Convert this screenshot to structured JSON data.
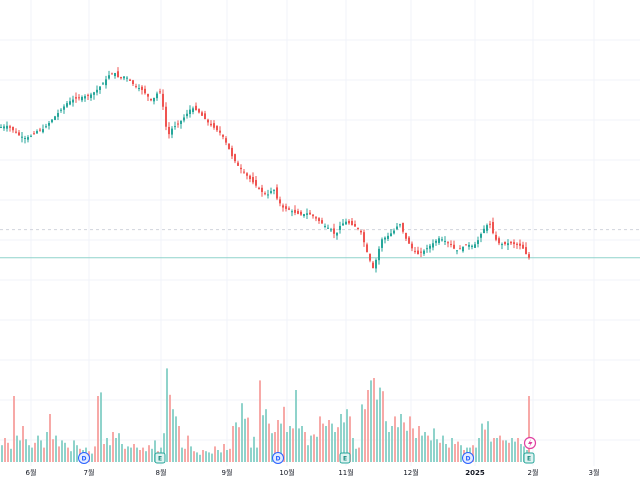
{
  "chart_data": {
    "type": "candlestick",
    "colors": {
      "up": "#26a69a",
      "down": "#ef5350",
      "up_volume": "#8fd3cb",
      "down_volume": "#f7a9a7",
      "grid": "#f0f3fa",
      "price_line": "#8fd3cb",
      "ref_line": "#d1d4dc"
    },
    "xlim": [
      0,
      640
    ],
    "price_range": [
      0,
      100
    ],
    "x_axis_labels": [
      {
        "label": "6월",
        "x": 31,
        "bold": false
      },
      {
        "label": "7월",
        "x": 89,
        "bold": false
      },
      {
        "label": "8월",
        "x": 161,
        "bold": false
      },
      {
        "label": "9월",
        "x": 227,
        "bold": false
      },
      {
        "label": "10월",
        "x": 287,
        "bold": false
      },
      {
        "label": "11월",
        "x": 346,
        "bold": false
      },
      {
        "label": "12월",
        "x": 411,
        "bold": false
      },
      {
        "label": "2025",
        "x": 475,
        "bold": true
      },
      {
        "label": "2월",
        "x": 533,
        "bold": false
      },
      {
        "label": "3월",
        "x": 594,
        "bold": false
      }
    ],
    "event_markers": [
      {
        "label": "D",
        "x": 84,
        "kind": "dividend"
      },
      {
        "label": "E",
        "x": 160,
        "kind": "earnings"
      },
      {
        "label": "D",
        "x": 278,
        "kind": "dividend"
      },
      {
        "label": "E",
        "x": 345,
        "kind": "earnings"
      },
      {
        "label": "D",
        "x": 468,
        "kind": "dividend"
      },
      {
        "label": "E",
        "x": 529,
        "kind": "earnings"
      }
    ],
    "price_path": [
      [
        0,
        70.5
      ],
      [
        8,
        71
      ],
      [
        14,
        69.5
      ],
      [
        20,
        68
      ],
      [
        26,
        67.2
      ],
      [
        32,
        68
      ],
      [
        38,
        69.5
      ],
      [
        44,
        70
      ],
      [
        50,
        72
      ],
      [
        56,
        74
      ],
      [
        62,
        76
      ],
      [
        68,
        78
      ],
      [
        74,
        79
      ],
      [
        80,
        79.5
      ],
      [
        86,
        80
      ],
      [
        92,
        80.5
      ],
      [
        98,
        82
      ],
      [
        104,
        84
      ],
      [
        110,
        86.5
      ],
      [
        116,
        87
      ],
      [
        120,
        85
      ],
      [
        124,
        86
      ],
      [
        128,
        85.5
      ],
      [
        132,
        84
      ],
      [
        136,
        83
      ],
      [
        142,
        82
      ],
      [
        148,
        80
      ],
      [
        152,
        78.5
      ],
      [
        156,
        80
      ],
      [
        160,
        82
      ],
      [
        164,
        76
      ],
      [
        168,
        67.5
      ],
      [
        172,
        70
      ],
      [
        176,
        71
      ],
      [
        180,
        72
      ],
      [
        186,
        74
      ],
      [
        192,
        76.5
      ],
      [
        198,
        75.5
      ],
      [
        204,
        73.5
      ],
      [
        210,
        71.5
      ],
      [
        216,
        70
      ],
      [
        222,
        68.5
      ],
      [
        228,
        65
      ],
      [
        232,
        62
      ],
      [
        238,
        59
      ],
      [
        244,
        57
      ],
      [
        250,
        55
      ],
      [
        256,
        53
      ],
      [
        262,
        51
      ],
      [
        268,
        50
      ],
      [
        274,
        52
      ],
      [
        278,
        48.5
      ],
      [
        284,
        46
      ],
      [
        290,
        45.5
      ],
      [
        296,
        44.5
      ],
      [
        302,
        44
      ],
      [
        308,
        44.5
      ],
      [
        314,
        43.5
      ],
      [
        320,
        42
      ],
      [
        326,
        40.5
      ],
      [
        332,
        39.5
      ],
      [
        336,
        37.5
      ],
      [
        340,
        40.5
      ],
      [
        346,
        42
      ],
      [
        352,
        41
      ],
      [
        358,
        40
      ],
      [
        362,
        38.5
      ],
      [
        366,
        34
      ],
      [
        370,
        30.5
      ],
      [
        374,
        27.5
      ],
      [
        378,
        32
      ],
      [
        382,
        36.5
      ],
      [
        388,
        37.5
      ],
      [
        394,
        39
      ],
      [
        400,
        41.5
      ],
      [
        406,
        37
      ],
      [
        412,
        34
      ],
      [
        418,
        32
      ],
      [
        424,
        33
      ],
      [
        430,
        34.5
      ],
      [
        436,
        36
      ],
      [
        440,
        37
      ],
      [
        446,
        36
      ],
      [
        452,
        35
      ],
      [
        456,
        33
      ],
      [
        462,
        34
      ],
      [
        468,
        35
      ],
      [
        474,
        34.5
      ],
      [
        478,
        36
      ],
      [
        482,
        38.5
      ],
      [
        486,
        40.5
      ],
      [
        490,
        41.5
      ],
      [
        494,
        38
      ],
      [
        498,
        35.5
      ],
      [
        504,
        35
      ],
      [
        510,
        35.5
      ],
      [
        516,
        35
      ],
      [
        522,
        34.5
      ],
      [
        526,
        32.5
      ],
      [
        528,
        31
      ]
    ],
    "current_price": 31,
    "reference_price": 39.5,
    "volume_range": [
      0,
      100
    ],
    "volumes": [
      [
        2,
        14
      ],
      [
        5,
        20
      ],
      [
        8,
        16
      ],
      [
        11,
        11
      ],
      [
        14,
        55
      ],
      [
        17,
        22
      ],
      [
        20,
        18
      ],
      [
        23,
        30
      ],
      [
        26,
        19
      ],
      [
        29,
        14
      ],
      [
        32,
        12
      ],
      [
        35,
        16
      ],
      [
        38,
        22
      ],
      [
        41,
        18
      ],
      [
        44,
        12
      ],
      [
        47,
        25
      ],
      [
        50,
        40
      ],
      [
        53,
        19
      ],
      [
        56,
        22
      ],
      [
        59,
        13
      ],
      [
        62,
        18
      ],
      [
        65,
        16
      ],
      [
        68,
        12
      ],
      [
        71,
        9
      ],
      [
        74,
        18
      ],
      [
        77,
        14
      ],
      [
        80,
        11
      ],
      [
        83,
        10
      ],
      [
        86,
        12
      ],
      [
        89,
        9
      ],
      [
        92,
        7
      ],
      [
        95,
        13
      ],
      [
        98,
        55
      ],
      [
        101,
        58
      ],
      [
        104,
        15
      ],
      [
        107,
        20
      ],
      [
        110,
        14
      ],
      [
        113,
        25
      ],
      [
        116,
        20
      ],
      [
        119,
        24
      ],
      [
        122,
        15
      ],
      [
        125,
        11
      ],
      [
        128,
        13
      ],
      [
        131,
        12
      ],
      [
        134,
        15
      ],
      [
        137,
        12
      ],
      [
        140,
        10
      ],
      [
        143,
        12
      ],
      [
        146,
        9
      ],
      [
        149,
        14
      ],
      [
        152,
        11
      ],
      [
        155,
        18
      ],
      [
        158,
        9
      ],
      [
        161,
        12
      ],
      [
        164,
        24
      ],
      [
        167,
        78
      ],
      [
        170,
        56
      ],
      [
        173,
        44
      ],
      [
        176,
        38
      ],
      [
        179,
        30
      ],
      [
        182,
        12
      ],
      [
        185,
        11
      ],
      [
        188,
        22
      ],
      [
        191,
        13
      ],
      [
        194,
        9
      ],
      [
        197,
        8
      ],
      [
        200,
        6
      ],
      [
        203,
        10
      ],
      [
        206,
        9
      ],
      [
        209,
        8
      ],
      [
        212,
        7
      ],
      [
        215,
        13
      ],
      [
        218,
        10
      ],
      [
        221,
        8
      ],
      [
        224,
        15
      ],
      [
        227,
        10
      ],
      [
        230,
        11
      ],
      [
        233,
        30
      ],
      [
        236,
        33
      ],
      [
        239,
        29
      ],
      [
        242,
        49
      ],
      [
        245,
        36
      ],
      [
        248,
        37
      ],
      [
        251,
        12
      ],
      [
        254,
        21
      ],
      [
        257,
        12
      ],
      [
        260,
        68
      ],
      [
        263,
        39
      ],
      [
        266,
        44
      ],
      [
        269,
        32
      ],
      [
        272,
        24
      ],
      [
        275,
        25
      ],
      [
        278,
        35
      ],
      [
        281,
        32
      ],
      [
        284,
        46
      ],
      [
        287,
        25
      ],
      [
        290,
        30
      ],
      [
        293,
        28
      ],
      [
        296,
        60
      ],
      [
        299,
        28
      ],
      [
        302,
        30
      ],
      [
        305,
        25
      ],
      [
        308,
        14
      ],
      [
        311,
        22
      ],
      [
        314,
        23
      ],
      [
        317,
        21
      ],
      [
        320,
        38
      ],
      [
        323,
        32
      ],
      [
        326,
        30
      ],
      [
        329,
        35
      ],
      [
        332,
        32
      ],
      [
        335,
        25
      ],
      [
        338,
        29
      ],
      [
        341,
        40
      ],
      [
        344,
        33
      ],
      [
        347,
        44
      ],
      [
        350,
        38
      ],
      [
        353,
        20
      ],
      [
        356,
        11
      ],
      [
        359,
        12
      ],
      [
        362,
        48
      ],
      [
        365,
        44
      ],
      [
        368,
        60
      ],
      [
        371,
        68
      ],
      [
        374,
        70
      ],
      [
        377,
        52
      ],
      [
        380,
        62
      ],
      [
        383,
        59
      ],
      [
        386,
        34
      ],
      [
        389,
        25
      ],
      [
        392,
        30
      ],
      [
        395,
        38
      ],
      [
        398,
        29
      ],
      [
        401,
        40
      ],
      [
        404,
        33
      ],
      [
        407,
        26
      ],
      [
        410,
        38
      ],
      [
        413,
        28
      ],
      [
        416,
        20
      ],
      [
        419,
        30
      ],
      [
        422,
        22
      ],
      [
        425,
        25
      ],
      [
        428,
        22
      ],
      [
        431,
        18
      ],
      [
        434,
        28
      ],
      [
        437,
        19
      ],
      [
        440,
        16
      ],
      [
        443,
        22
      ],
      [
        446,
        15
      ],
      [
        449,
        12
      ],
      [
        452,
        20
      ],
      [
        455,
        15
      ],
      [
        458,
        17
      ],
      [
        461,
        14
      ],
      [
        464,
        10
      ],
      [
        467,
        12
      ],
      [
        470,
        12
      ],
      [
        473,
        14
      ],
      [
        476,
        12
      ],
      [
        479,
        20
      ],
      [
        482,
        32
      ],
      [
        485,
        27
      ],
      [
        488,
        34
      ],
      [
        491,
        17
      ],
      [
        494,
        20
      ],
      [
        497,
        20
      ],
      [
        500,
        22
      ],
      [
        503,
        18
      ],
      [
        506,
        18
      ],
      [
        509,
        16
      ],
      [
        512,
        20
      ],
      [
        515,
        17
      ],
      [
        518,
        20
      ],
      [
        521,
        15
      ],
      [
        524,
        13
      ],
      [
        527,
        10
      ],
      [
        529,
        55
      ]
    ]
  }
}
